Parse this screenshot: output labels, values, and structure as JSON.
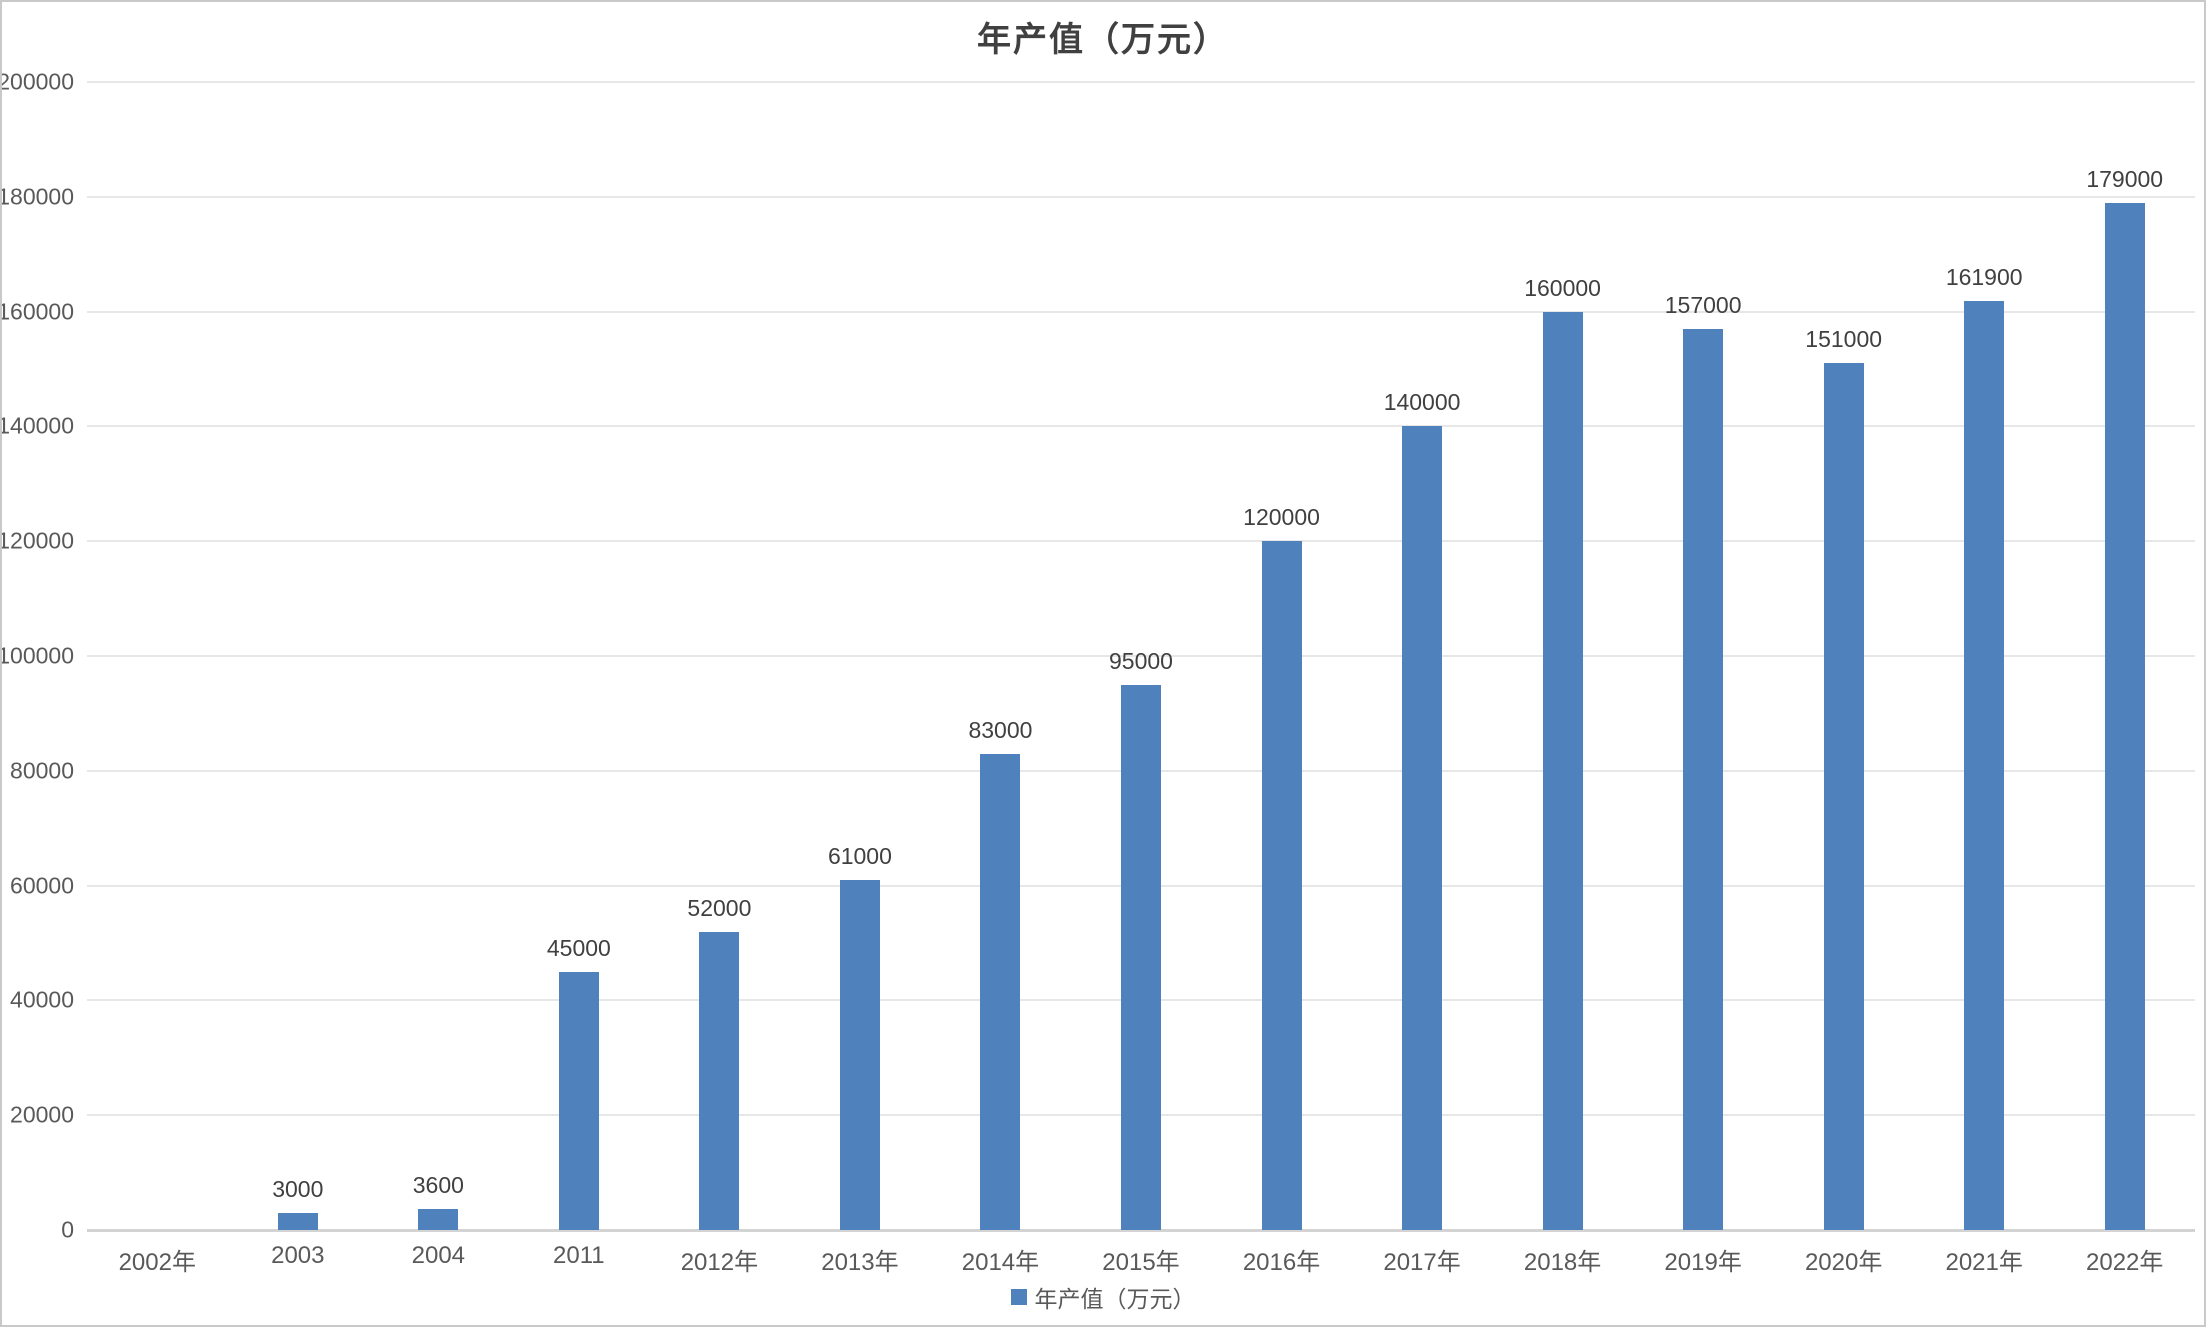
{
  "chart_data": {
    "type": "bar",
    "title": "年产值（万元）",
    "categories": [
      "2002年",
      "2003",
      "2004",
      "2011",
      "2012年",
      "2013年",
      "2014年",
      "2015年",
      "2016年",
      "2017年",
      "2018年",
      "2019年",
      "2020年",
      "2021年",
      "2022年"
    ],
    "series": [
      {
        "name": "年产值（万元）",
        "values": [
          0,
          3000,
          3600,
          45000,
          52000,
          61000,
          83000,
          95000,
          120000,
          140000,
          160000,
          157000,
          151000,
          161900,
          179000
        ]
      }
    ],
    "data_labels": [
      "",
      "3000",
      "3600",
      "45000",
      "52000",
      "61000",
      "83000",
      "95000",
      "120000",
      "140000",
      "160000",
      "157000",
      "151000",
      "161900",
      "179000"
    ],
    "xlabel": "",
    "ylabel": "",
    "ylim": [
      0,
      200000
    ],
    "ytick_step": 20000,
    "ytick_labels": [
      "0",
      "20000",
      "40000",
      "60000",
      "80000",
      "100000",
      "120000",
      "140000",
      "160000",
      "180000",
      "200000"
    ],
    "grid": true,
    "legend_position": "bottom",
    "bar_color": "#4f81bd",
    "gridline_color": "#e7e7e7",
    "axis_line_color": "#d3d3d3",
    "text_color": "#595959",
    "label_color": "#404040"
  },
  "legend": {
    "label": "年产值（万元）"
  }
}
